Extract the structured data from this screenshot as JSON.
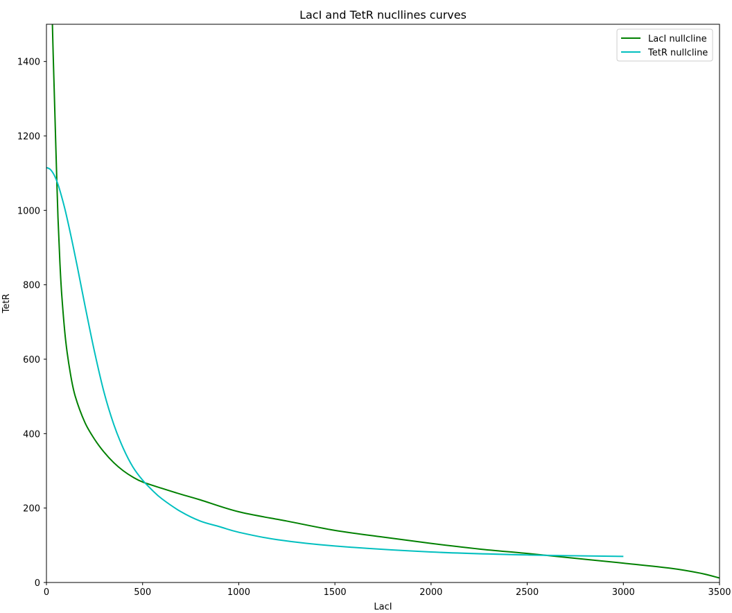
{
  "chart_data": {
    "type": "line",
    "title": "LacI and TetR nucllines curves",
    "xlabel": "LacI",
    "ylabel": "TetR",
    "xlim": [
      0,
      3500
    ],
    "ylim": [
      0,
      1500
    ],
    "xticks": [
      0,
      500,
      1000,
      1500,
      2000,
      2500,
      3000,
      3500
    ],
    "yticks": [
      0,
      200,
      400,
      600,
      800,
      1000,
      1200,
      1400
    ],
    "grid": false,
    "legend_position": "top-right",
    "series": [
      {
        "name": "LacI nullcline",
        "color": "#008000",
        "x": [
          31,
          35,
          40,
          45,
          50,
          60,
          70,
          80,
          100,
          125,
          150,
          200,
          250,
          300,
          350,
          400,
          450,
          500,
          600,
          700,
          800,
          1000,
          1250,
          1500,
          1750,
          2000,
          2250,
          2500,
          2750,
          3000,
          3250,
          3400,
          3500
        ],
        "y": [
          1500,
          1420,
          1330,
          1240,
          1150,
          980,
          860,
          770,
          650,
          560,
          500,
          430,
          385,
          350,
          322,
          300,
          283,
          270,
          253,
          237,
          222,
          190,
          165,
          140,
          122,
          105,
          90,
          78,
          65,
          52,
          38,
          25,
          12
        ]
      },
      {
        "name": "TetR nullcline",
        "color": "#00BFBF",
        "x": [
          0,
          20,
          40,
          60,
          80,
          100,
          130,
          160,
          200,
          250,
          300,
          350,
          400,
          450,
          500,
          550,
          600,
          700,
          800,
          900,
          1000,
          1200,
          1500,
          2000,
          2500,
          3000
        ],
        "y": [
          1115,
          1110,
          1095,
          1070,
          1035,
          995,
          925,
          850,
          745,
          620,
          510,
          425,
          360,
          310,
          275,
          248,
          225,
          190,
          165,
          150,
          135,
          115,
          98,
          82,
          74,
          70
        ]
      }
    ]
  }
}
